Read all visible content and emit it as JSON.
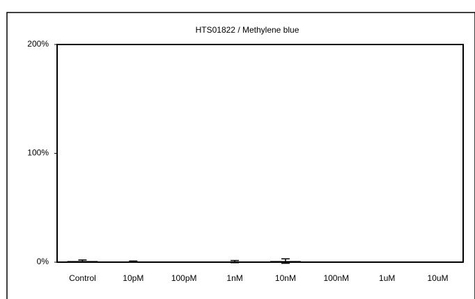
{
  "chart_data": {
    "type": "bar",
    "title": "HTS01822 / Methylene blue",
    "categories": [
      "Control",
      "10pM",
      "100pM",
      "1nM",
      "10nM",
      "100nM",
      "1uM",
      "10uM"
    ],
    "values": [
      1,
      0.5,
      0,
      0.5,
      1,
      0,
      0,
      0
    ],
    "errors": [
      1,
      0.5,
      0,
      1,
      2,
      0,
      0,
      0
    ],
    "color": "#000000",
    "ylim": [
      0,
      200
    ],
    "yticks": [
      {
        "value": 0,
        "label": "0%"
      },
      {
        "value": 100,
        "label": "100%"
      },
      {
        "value": 200,
        "label": "200%"
      }
    ],
    "grid": false
  }
}
